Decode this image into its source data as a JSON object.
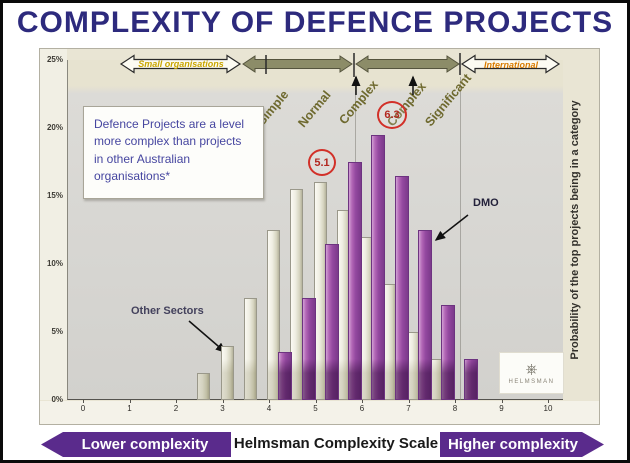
{
  "page": {
    "title": "COMPLEXITY OF DEFENCE PROJECTS"
  },
  "top_bands": {
    "small_organisations": "Small organisations",
    "international": "International"
  },
  "band_labels": [
    "Simple",
    "Normal",
    "Complex",
    "Complex",
    "Significant"
  ],
  "callout_text": "Defence Projects are a level more complex than projects in other Australian organisations*",
  "annotations": {
    "other_sectors_label": "Other Sectors",
    "dmo_label": "DMO",
    "other_sectors_mean": "5.1",
    "dmo_mean": "6.3"
  },
  "right_axis_label": "Probability of the top projects being in a category",
  "footer": {
    "left_arrow": "Lower complexity",
    "center": "Helmsman Complexity Scale",
    "right_arrow": "Higher complexity"
  },
  "logo": {
    "icon": "ship-wheel-icon",
    "text": "HELMSMAN"
  },
  "colors": {
    "title": "#2d2a7d",
    "accent_purple": "#5a2b8c",
    "bar_purple": "#9b4fa5",
    "bar_light": "#e9e7d8",
    "mean_circle_red": "#d23028",
    "band_label_olive": "#6e692e",
    "small_orgs_text": "#c9a500",
    "international_text": "#d97b00"
  },
  "chart_data": {
    "type": "bar",
    "title": "COMPLEXITY OF DEFENCE PROJECTS",
    "xlabel": "Helmsman Complexity Scale",
    "ylabel": "Probability of the top projects being in a category",
    "xlim": [
      0,
      10
    ],
    "ylim_percent": [
      0,
      25
    ],
    "x_ticks": [
      0,
      1,
      2,
      3,
      4,
      5,
      6,
      7,
      8,
      9,
      10
    ],
    "y_ticks": [
      "0%",
      "5%",
      "10%",
      "15%",
      "20%",
      "25%"
    ],
    "grid": false,
    "legend_position": "inline-annotations",
    "series": [
      {
        "name": "Other Sectors",
        "mean_label": "5.1",
        "color": "#e9e7d8",
        "x": [
          2.6,
          3.1,
          3.6,
          4.1,
          4.6,
          5.1,
          5.6,
          6.1,
          6.6,
          7.1,
          7.6
        ],
        "values_percent": [
          2,
          4,
          7.5,
          12.5,
          15.5,
          16,
          14,
          12,
          8.5,
          5,
          3
        ]
      },
      {
        "name": "DMO",
        "mean_label": "6.3",
        "color": "#9b4fa5",
        "x": [
          4.35,
          4.85,
          5.35,
          5.85,
          6.35,
          6.85,
          7.35,
          7.85,
          8.35
        ],
        "values_percent": [
          3.5,
          7.5,
          11.5,
          17.5,
          19.5,
          16.5,
          12.5,
          7,
          3
        ]
      }
    ]
  }
}
